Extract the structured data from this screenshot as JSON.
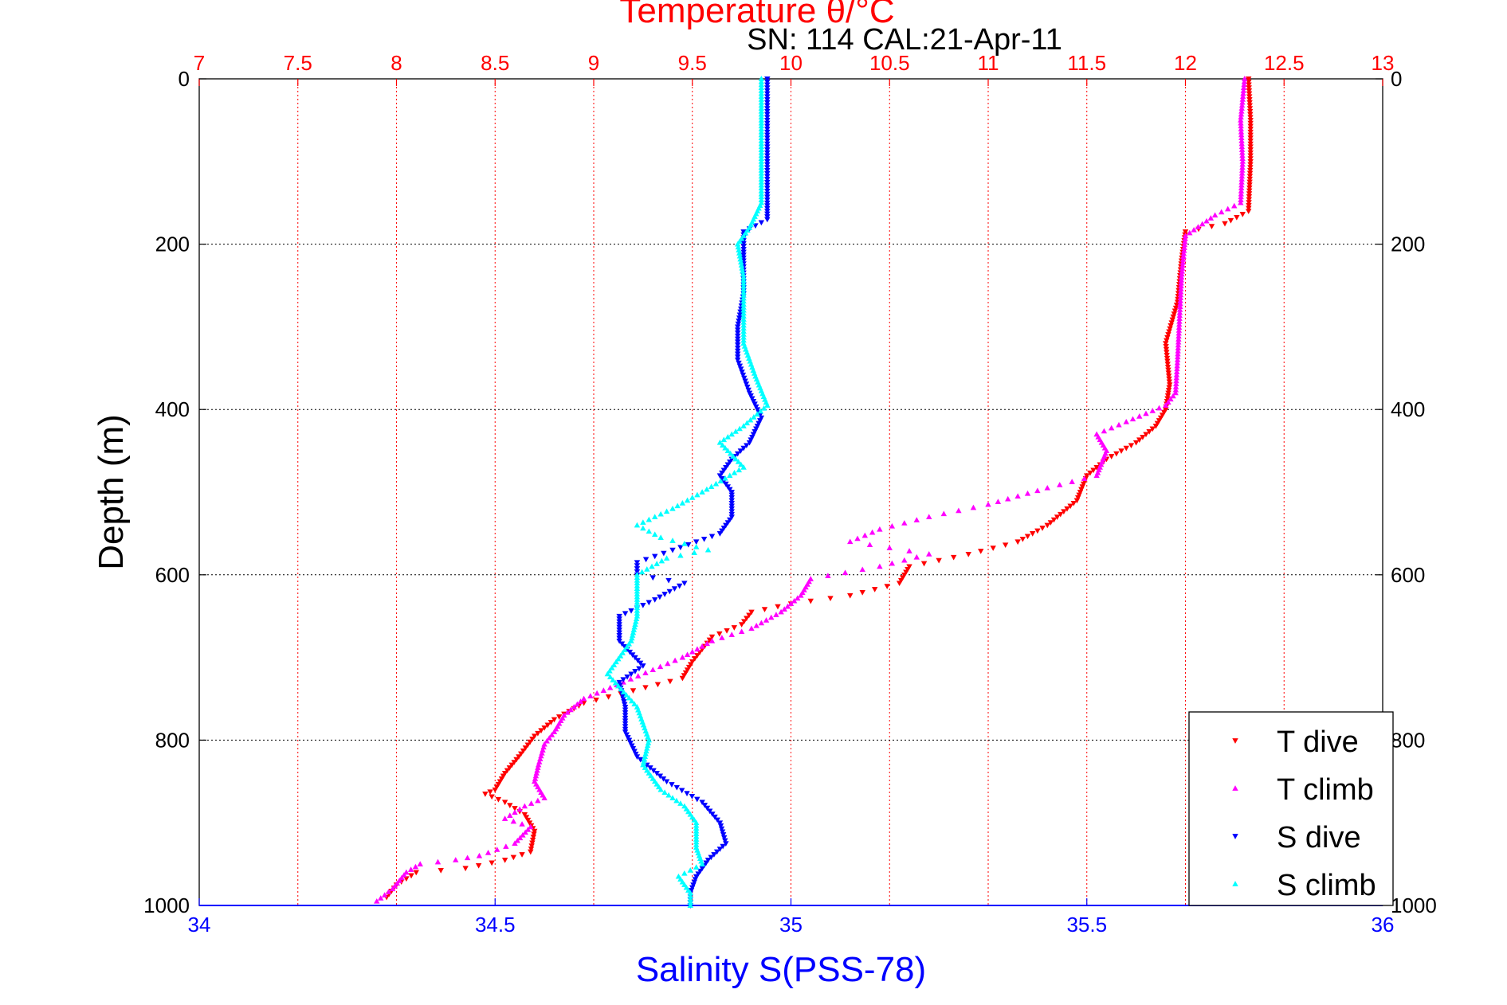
{
  "chart_data": {
    "type": "scatter",
    "title_top": "Temperature θ/°C",
    "title_info": "SN: 114  CAL:21-Apr-11",
    "ylabel": "Depth (m)",
    "xlabel_bottom": "Salinity S(PSS-78)",
    "y_axis": {
      "label": "Depth (m)",
      "range": [
        0,
        1000
      ],
      "reversed": true,
      "ticks": [
        0,
        200,
        400,
        600,
        800,
        1000
      ]
    },
    "x_axis_bottom": {
      "label": "Salinity S(PSS-78)",
      "range": [
        34,
        36
      ],
      "ticks": [
        34,
        34.5,
        35,
        35.5,
        36
      ],
      "tick_labels": [
        "34",
        "34.5",
        "35",
        "35.5",
        "36"
      ]
    },
    "x_axis_top": {
      "label": "Temperature θ/°C",
      "range": [
        7,
        13
      ],
      "ticks": [
        7,
        7.5,
        8,
        8.5,
        9,
        9.5,
        10,
        10.5,
        11,
        11.5,
        12,
        12.5,
        13
      ],
      "tick_labels": [
        "7",
        "7.5",
        "8",
        "8.5",
        "9",
        "9.5",
        "10",
        "10.5",
        "11",
        "11.5",
        "12",
        "12.5",
        "13"
      ]
    },
    "grid": true,
    "legend_position": "bottom-right",
    "colors": {
      "top_axis": "#ff0000",
      "bottom_axis": "#0000ff",
      "grid_vertical": "#ff0000",
      "grid_horizontal": "#000000"
    },
    "series": [
      {
        "name": "T dive",
        "axis": "top",
        "color": "#ff0000",
        "marker": "triangle-down",
        "points": [
          [
            12.32,
            0
          ],
          [
            12.33,
            50
          ],
          [
            12.33,
            100
          ],
          [
            12.32,
            160
          ],
          [
            12.2,
            175
          ],
          [
            12.0,
            185
          ],
          [
            11.98,
            220
          ],
          [
            11.96,
            270
          ],
          [
            11.9,
            320
          ],
          [
            11.92,
            370
          ],
          [
            11.9,
            400
          ],
          [
            11.85,
            420
          ],
          [
            11.75,
            440
          ],
          [
            11.6,
            460
          ],
          [
            11.5,
            480
          ],
          [
            11.45,
            510
          ],
          [
            11.3,
            540
          ],
          [
            11.15,
            560
          ],
          [
            10.9,
            575
          ],
          [
            10.6,
            590
          ],
          [
            10.55,
            610
          ],
          [
            10.3,
            625
          ],
          [
            10.0,
            635
          ],
          [
            9.8,
            645
          ],
          [
            9.75,
            660
          ],
          [
            9.6,
            675
          ],
          [
            9.55,
            690
          ],
          [
            9.5,
            705
          ],
          [
            9.45,
            725
          ],
          [
            9.2,
            740
          ],
          [
            8.95,
            755
          ],
          [
            8.8,
            775
          ],
          [
            8.7,
            795
          ],
          [
            8.62,
            820
          ],
          [
            8.55,
            840
          ],
          [
            8.5,
            860
          ],
          [
            8.45,
            865
          ],
          [
            8.55,
            875
          ],
          [
            8.65,
            890
          ],
          [
            8.7,
            910
          ],
          [
            8.68,
            935
          ],
          [
            8.55,
            945
          ],
          [
            8.35,
            955
          ],
          [
            8.1,
            960
          ],
          [
            8.0,
            975
          ],
          [
            7.95,
            990
          ]
        ]
      },
      {
        "name": "T climb",
        "axis": "top",
        "color": "#ff00ff",
        "marker": "triangle-up",
        "points": [
          [
            12.3,
            0
          ],
          [
            12.28,
            50
          ],
          [
            12.29,
            100
          ],
          [
            12.28,
            150
          ],
          [
            12.15,
            165
          ],
          [
            12.0,
            190
          ],
          [
            11.98,
            240
          ],
          [
            11.97,
            290
          ],
          [
            11.96,
            340
          ],
          [
            11.95,
            380
          ],
          [
            11.9,
            395
          ],
          [
            11.7,
            415
          ],
          [
            11.55,
            430
          ],
          [
            11.6,
            450
          ],
          [
            11.55,
            480
          ],
          [
            11.3,
            495
          ],
          [
            11.0,
            515
          ],
          [
            10.7,
            530
          ],
          [
            10.45,
            545
          ],
          [
            10.3,
            560
          ],
          [
            10.7,
            575
          ],
          [
            10.45,
            590
          ],
          [
            10.1,
            605
          ],
          [
            10.05,
            625
          ],
          [
            9.95,
            645
          ],
          [
            9.8,
            665
          ],
          [
            9.6,
            680
          ],
          [
            9.45,
            700
          ],
          [
            9.3,
            715
          ],
          [
            9.15,
            730
          ],
          [
            8.95,
            750
          ],
          [
            8.85,
            770
          ],
          [
            8.8,
            790
          ],
          [
            8.75,
            805
          ],
          [
            8.72,
            830
          ],
          [
            8.7,
            850
          ],
          [
            8.75,
            870
          ],
          [
            8.65,
            880
          ],
          [
            8.55,
            895
          ],
          [
            8.68,
            905
          ],
          [
            8.6,
            925
          ],
          [
            8.42,
            940
          ],
          [
            8.3,
            945
          ],
          [
            8.12,
            950
          ],
          [
            8.05,
            960
          ],
          [
            7.98,
            980
          ],
          [
            7.9,
            995
          ]
        ]
      },
      {
        "name": "S dive",
        "axis": "bottom",
        "color": "#0000ff",
        "marker": "triangle-down",
        "points": [
          [
            34.96,
            0
          ],
          [
            34.96,
            50
          ],
          [
            34.96,
            100
          ],
          [
            34.96,
            150
          ],
          [
            34.96,
            170
          ],
          [
            34.92,
            185
          ],
          [
            34.92,
            220
          ],
          [
            34.92,
            260
          ],
          [
            34.91,
            300
          ],
          [
            34.91,
            340
          ],
          [
            34.93,
            380
          ],
          [
            34.95,
            410
          ],
          [
            34.93,
            440
          ],
          [
            34.9,
            460
          ],
          [
            34.88,
            480
          ],
          [
            34.9,
            500
          ],
          [
            34.9,
            530
          ],
          [
            34.88,
            550
          ],
          [
            34.8,
            570
          ],
          [
            34.74,
            585
          ],
          [
            34.74,
            600
          ],
          [
            34.82,
            610
          ],
          [
            34.77,
            630
          ],
          [
            34.71,
            650
          ],
          [
            34.71,
            680
          ],
          [
            34.75,
            710
          ],
          [
            34.71,
            730
          ],
          [
            34.72,
            760
          ],
          [
            34.72,
            790
          ],
          [
            34.74,
            820
          ],
          [
            34.79,
            850
          ],
          [
            34.85,
            875
          ],
          [
            34.88,
            900
          ],
          [
            34.89,
            925
          ],
          [
            34.86,
            945
          ],
          [
            34.84,
            965
          ],
          [
            34.83,
            985
          ],
          [
            34.83,
            1000
          ]
        ]
      },
      {
        "name": "S climb",
        "axis": "bottom",
        "color": "#00ffff",
        "marker": "triangle-up",
        "points": [
          [
            34.95,
            0
          ],
          [
            34.95,
            50
          ],
          [
            34.95,
            100
          ],
          [
            34.95,
            150
          ],
          [
            34.93,
            180
          ],
          [
            34.91,
            200
          ],
          [
            34.92,
            240
          ],
          [
            34.92,
            280
          ],
          [
            34.92,
            320
          ],
          [
            34.94,
            360
          ],
          [
            34.96,
            395
          ],
          [
            34.92,
            420
          ],
          [
            34.88,
            440
          ],
          [
            34.92,
            470
          ],
          [
            34.85,
            500
          ],
          [
            34.8,
            520
          ],
          [
            34.74,
            540
          ],
          [
            34.78,
            555
          ],
          [
            34.86,
            570
          ],
          [
            34.79,
            580
          ],
          [
            34.74,
            600
          ],
          [
            34.74,
            620
          ],
          [
            34.74,
            650
          ],
          [
            34.73,
            680
          ],
          [
            34.69,
            720
          ],
          [
            34.74,
            760
          ],
          [
            34.76,
            800
          ],
          [
            34.75,
            830
          ],
          [
            34.78,
            860
          ],
          [
            34.82,
            880
          ],
          [
            34.84,
            900
          ],
          [
            34.84,
            930
          ],
          [
            34.85,
            950
          ],
          [
            34.81,
            965
          ],
          [
            34.83,
            985
          ],
          [
            34.83,
            1000
          ]
        ]
      }
    ]
  }
}
